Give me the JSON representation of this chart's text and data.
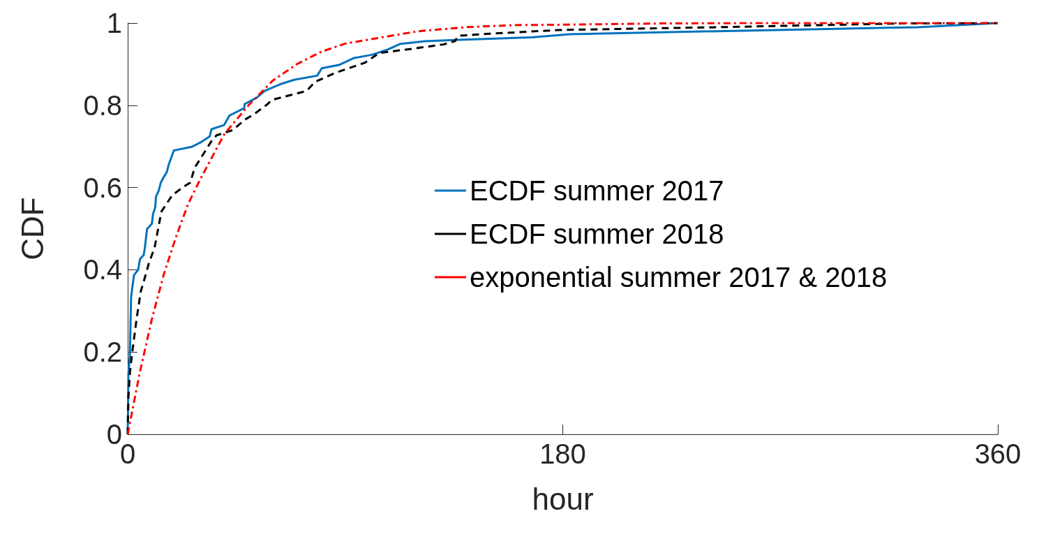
{
  "chart_data": {
    "type": "line",
    "xlabel": "hour",
    "ylabel": "CDF",
    "xlim": [
      0,
      360
    ],
    "xticks": [
      0,
      180,
      360
    ],
    "ylim": [
      0,
      1
    ],
    "yticks": [
      0,
      0.2,
      0.4,
      0.6,
      0.8,
      1
    ],
    "grid": false,
    "legend": "right",
    "marker": "none",
    "series": [
      {
        "name": "ECDF summer 2017",
        "color": "#0072bd",
        "line_style": "solid",
        "x": [
          0,
          0.3,
          0.9,
          1.4,
          2.6,
          4.3,
          5.1,
          6.6,
          7.1,
          8,
          10,
          10.5,
          11.4,
          11.7,
          12.8,
          13.7,
          14.5,
          16.2,
          17.1,
          19.1,
          26.5,
          29.9,
          33.9,
          34.7,
          39.9,
          42.1,
          48.2,
          48.4,
          53.3,
          56.7,
          63,
          68.9,
          78.4,
          80.3,
          87.4,
          93.6,
          101.2,
          107.8,
          112.6,
          123.1,
          135.4,
          166.8,
          183,
          327,
          360
        ],
        "values": [
          0,
          0.149,
          0.19,
          0.334,
          0.387,
          0.4,
          0.426,
          0.436,
          0.453,
          0.499,
          0.512,
          0.536,
          0.552,
          0.578,
          0.592,
          0.612,
          0.621,
          0.638,
          0.658,
          0.69,
          0.699,
          0.709,
          0.724,
          0.742,
          0.752,
          0.775,
          0.793,
          0.803,
          0.818,
          0.835,
          0.851,
          0.862,
          0.872,
          0.89,
          0.898,
          0.915,
          0.923,
          0.936,
          0.949,
          0.956,
          0.959,
          0.965,
          0.973,
          0.99,
          1
        ]
      },
      {
        "name": "ECDF summer 2018",
        "color": "#000000",
        "line_style": "dashed",
        "x": [
          0,
          0.3,
          0.9,
          2,
          3.7,
          5.4,
          7.7,
          8.8,
          11.1,
          12.8,
          14,
          18.5,
          23.7,
          25.9,
          27.7,
          30.5,
          35.1,
          36.8,
          43.6,
          48.2,
          52.7,
          57.9,
          59.6,
          74,
          77.5,
          86,
          98.3,
          104,
          118.3,
          130.7,
          135.4,
          136.8,
          149.7,
          178.2,
          245,
          320,
          360
        ],
        "values": [
          0,
          0.09,
          0.149,
          0.205,
          0.281,
          0.347,
          0.393,
          0.417,
          0.453,
          0.506,
          0.542,
          0.582,
          0.604,
          0.612,
          0.648,
          0.674,
          0.717,
          0.727,
          0.74,
          0.764,
          0.78,
          0.803,
          0.813,
          0.835,
          0.857,
          0.879,
          0.904,
          0.927,
          0.938,
          0.948,
          0.956,
          0.969,
          0.974,
          0.983,
          0.99,
          0.999,
          1
        ]
      },
      {
        "name": "exponential summer 2017 & 2018",
        "color": "#ff0000",
        "line_style": "dashdot",
        "x": [
          0,
          5,
          10,
          15,
          20,
          25,
          30,
          40,
          50,
          60,
          70,
          80,
          90,
          100,
          120,
          140,
          160,
          180,
          220,
          260,
          300,
          360
        ],
        "values": [
          0,
          0.15,
          0.28,
          0.39,
          0.48,
          0.56,
          0.62,
          0.73,
          0.8,
          0.86,
          0.9,
          0.93,
          0.95,
          0.96,
          0.98,
          0.99,
          0.995,
          0.996,
          0.999,
          1,
          1,
          1
        ]
      }
    ]
  }
}
